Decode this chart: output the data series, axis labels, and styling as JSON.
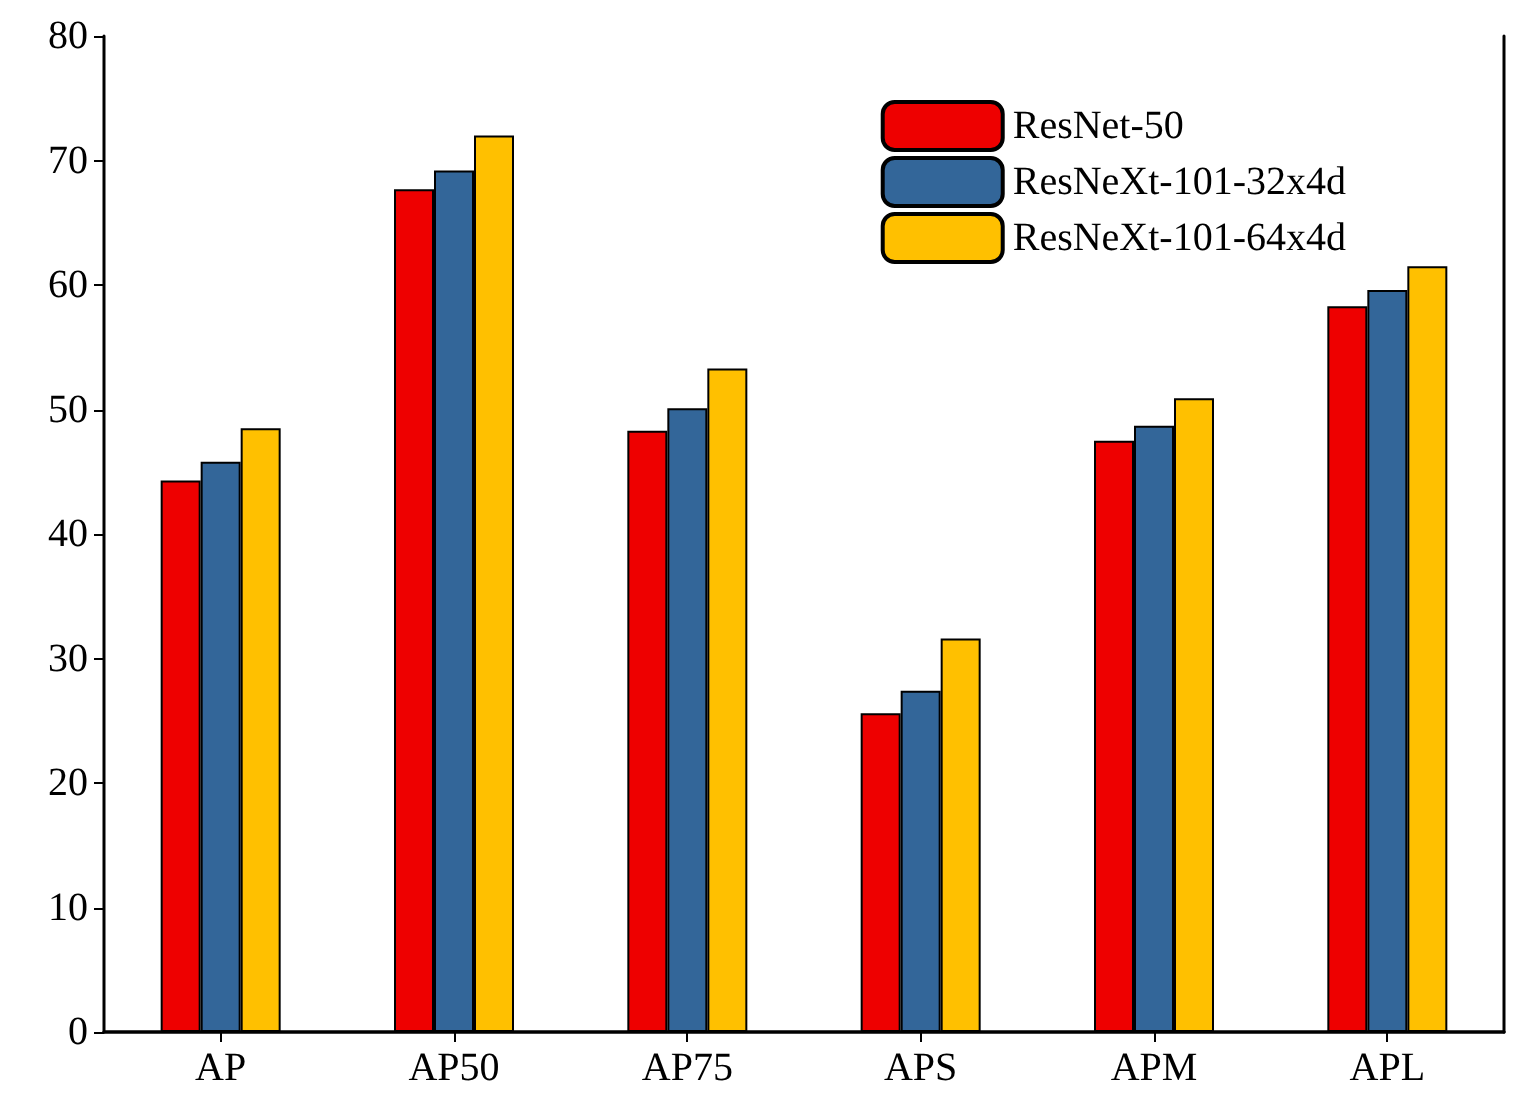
{
  "chart_data": {
    "type": "bar",
    "categories": [
      "AP",
      "AP50",
      "AP75",
      "APS",
      "APM",
      "APL"
    ],
    "series": [
      {
        "name": "ResNet-50",
        "color": "#ee0000",
        "values": [
          44.3,
          67.7,
          48.3,
          25.6,
          47.5,
          58.3
        ]
      },
      {
        "name": "ResNeXt-101-32x4d",
        "color": "#336699",
        "values": [
          45.8,
          69.2,
          50.1,
          27.4,
          48.7,
          59.6
        ]
      },
      {
        "name": "ResNeXt-101-64x4d",
        "color": "#ffc000",
        "values": [
          48.5,
          72.0,
          53.3,
          31.6,
          50.9,
          61.5
        ]
      }
    ],
    "ylim": [
      0,
      80
    ],
    "yticks": [
      0,
      10,
      20,
      30,
      40,
      50,
      60,
      70,
      80
    ],
    "grid": false,
    "legend": "top right"
  }
}
